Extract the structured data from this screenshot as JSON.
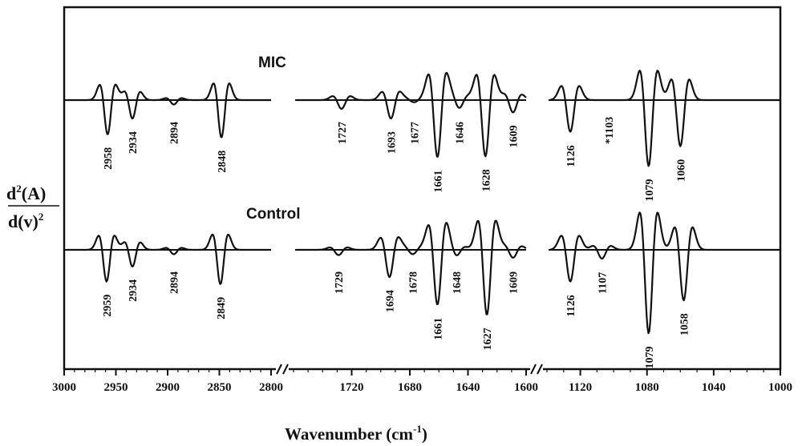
{
  "chart_data": {
    "type": "line",
    "title": "",
    "xlabel": "Wavenumber (cm",
    "xlabel_sup": "-1",
    "xlabel_close": ")",
    "ylabel_num": "d",
    "ylabel_num_sup": "2",
    "ylabel_num_rest": "(A)",
    "ylabel_den": "d(v)",
    "ylabel_den_sup": "2",
    "x_reversed": true,
    "grid": false,
    "axis_breaks": [
      "2800-1760",
      "1600-1140"
    ],
    "segments": [
      {
        "xlim": [
          3000,
          2800
        ],
        "ticks": [
          "3000",
          "2950",
          "2900",
          "2850",
          "2800"
        ]
      },
      {
        "xlim": [
          1760,
          1600
        ],
        "ticks": [
          "1720",
          "1680",
          "1640",
          "1600"
        ]
      },
      {
        "xlim": [
          1140,
          1000
        ],
        "ticks": [
          "1120",
          "1080",
          "1040",
          "1000"
        ]
      }
    ],
    "series": [
      {
        "name": "MIC",
        "peaks": [
          {
            "segment": 0,
            "label": "2958",
            "x": 2958,
            "depth": 0.78
          },
          {
            "segment": 0,
            "label": "2934",
            "x": 2934,
            "depth": 0.42
          },
          {
            "segment": 0,
            "label": "2894",
            "x": 2894,
            "depth": 0.1
          },
          {
            "segment": 0,
            "label": "2848",
            "x": 2848,
            "depth": 0.85
          },
          {
            "segment": 1,
            "label": "1727",
            "x": 1727,
            "depth": 0.2
          },
          {
            "segment": 1,
            "label": "1693",
            "x": 1693,
            "depth": 0.42
          },
          {
            "segment": 1,
            "label": "1677",
            "x": 1677,
            "depth": 0.05
          },
          {
            "segment": 1,
            "label": "1661",
            "x": 1661,
            "depth": 1.3
          },
          {
            "segment": 1,
            "label": "1646",
            "x": 1646,
            "depth": 0.18
          },
          {
            "segment": 1,
            "label": "1628",
            "x": 1628,
            "depth": 1.28
          },
          {
            "segment": 1,
            "label": "1609",
            "x": 1609,
            "depth": 0.28
          },
          {
            "segment": 2,
            "label": "1126",
            "x": 1126,
            "depth": 0.72
          },
          {
            "segment": 2,
            "label": "*1103",
            "x": 1103,
            "depth": 0.0
          },
          {
            "segment": 2,
            "label": "1079",
            "x": 1079,
            "depth": 1.5
          },
          {
            "segment": 2,
            "label": "1060",
            "x": 1060,
            "depth": 1.05
          }
        ]
      },
      {
        "name": "Control",
        "peaks": [
          {
            "segment": 0,
            "label": "2959",
            "x": 2959,
            "depth": 0.72
          },
          {
            "segment": 0,
            "label": "2934",
            "x": 2934,
            "depth": 0.38
          },
          {
            "segment": 0,
            "label": "2894",
            "x": 2894,
            "depth": 0.1
          },
          {
            "segment": 0,
            "label": "2849",
            "x": 2849,
            "depth": 0.78
          },
          {
            "segment": 1,
            "label": "1729",
            "x": 1729,
            "depth": 0.12
          },
          {
            "segment": 1,
            "label": "1694",
            "x": 1694,
            "depth": 0.62
          },
          {
            "segment": 1,
            "label": "1678",
            "x": 1678,
            "depth": 0.1
          },
          {
            "segment": 1,
            "label": "1661",
            "x": 1661,
            "depth": 1.25
          },
          {
            "segment": 1,
            "label": "1648",
            "x": 1648,
            "depth": 0.14
          },
          {
            "segment": 1,
            "label": "1627",
            "x": 1627,
            "depth": 1.48
          },
          {
            "segment": 1,
            "label": "1609",
            "x": 1609,
            "depth": 0.18
          },
          {
            "segment": 2,
            "label": "1126",
            "x": 1126,
            "depth": 0.72
          },
          {
            "segment": 2,
            "label": "1107",
            "x": 1107,
            "depth": 0.2
          },
          {
            "segment": 2,
            "label": "1079",
            "x": 1079,
            "depth": 1.9
          },
          {
            "segment": 2,
            "label": "1058",
            "x": 1058,
            "depth": 1.15
          }
        ]
      }
    ]
  }
}
